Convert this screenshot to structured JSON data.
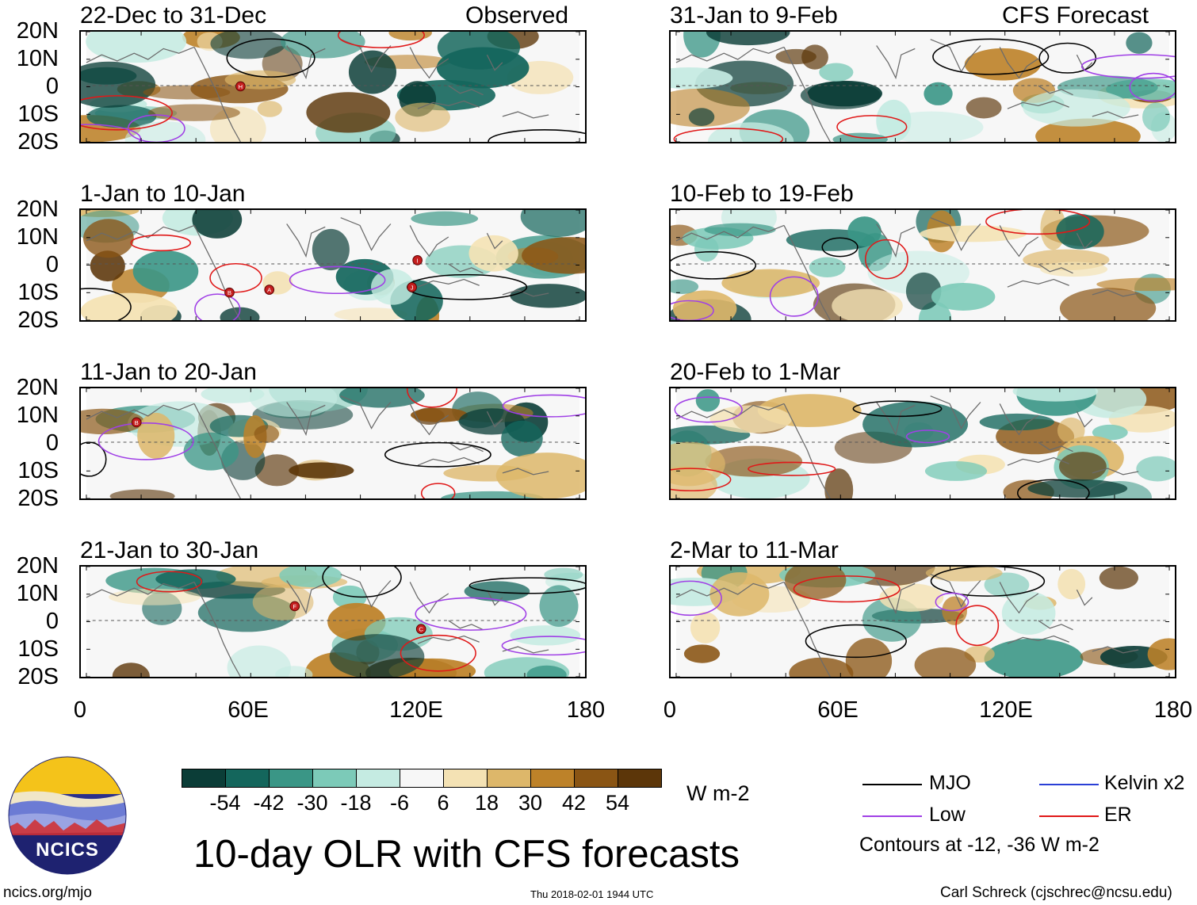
{
  "figure": {
    "title": "10-day OLR with CFS forecasts",
    "url": "ncics.org/mjo",
    "timestamp": "Thu 2018-02-01 1944 UTC",
    "credit": "Carl Schreck (cjschrec@ncsu.edu)",
    "logo_text": "NCICS"
  },
  "labels": {
    "observed": "Observed",
    "forecast": "CFS Forecast",
    "lat": [
      "20N",
      "10N",
      "0",
      "10S",
      "20S"
    ],
    "lon": [
      "0",
      "60E",
      "120E",
      "180"
    ]
  },
  "panels": [
    {
      "title": "22-Dec to 31-Dec",
      "markers": [
        "H"
      ]
    },
    {
      "title": "1-Jan to 10-Jan",
      "markers": [
        "B",
        "A",
        "I",
        "J"
      ]
    },
    {
      "title": "11-Jan to 20-Jan",
      "markers": [
        "B"
      ]
    },
    {
      "title": "21-Jan to 30-Jan",
      "markers": [
        "C",
        "F"
      ]
    },
    {
      "title": "31-Jan to 9-Feb",
      "markers": []
    },
    {
      "title": "10-Feb to 19-Feb",
      "markers": []
    },
    {
      "title": "20-Feb to 1-Mar",
      "markers": []
    },
    {
      "title": "2-Mar to 11-Mar",
      "markers": []
    }
  ],
  "colorbar": {
    "unit": "W m-2",
    "labels": [
      "-54",
      "-42",
      "-30",
      "-18",
      "-6",
      "6",
      "18",
      "30",
      "42",
      "54"
    ],
    "colors": [
      "#0b3d37",
      "#14665c",
      "#3a9686",
      "#7ccab8",
      "#c5ebe2",
      "#f7f7f7",
      "#f4e2b4",
      "#ddb76a",
      "#bd8229",
      "#8a5514",
      "#5c3609"
    ]
  },
  "legend": {
    "items": [
      {
        "label": "MJO",
        "color": "#000000"
      },
      {
        "label": "Kelvin x2",
        "color": "#2a3fd6"
      },
      {
        "label": "Low",
        "color": "#a040e6"
      },
      {
        "label": "ER",
        "color": "#e01818"
      }
    ],
    "note": "Contours at -12, -36 W m-2"
  }
}
